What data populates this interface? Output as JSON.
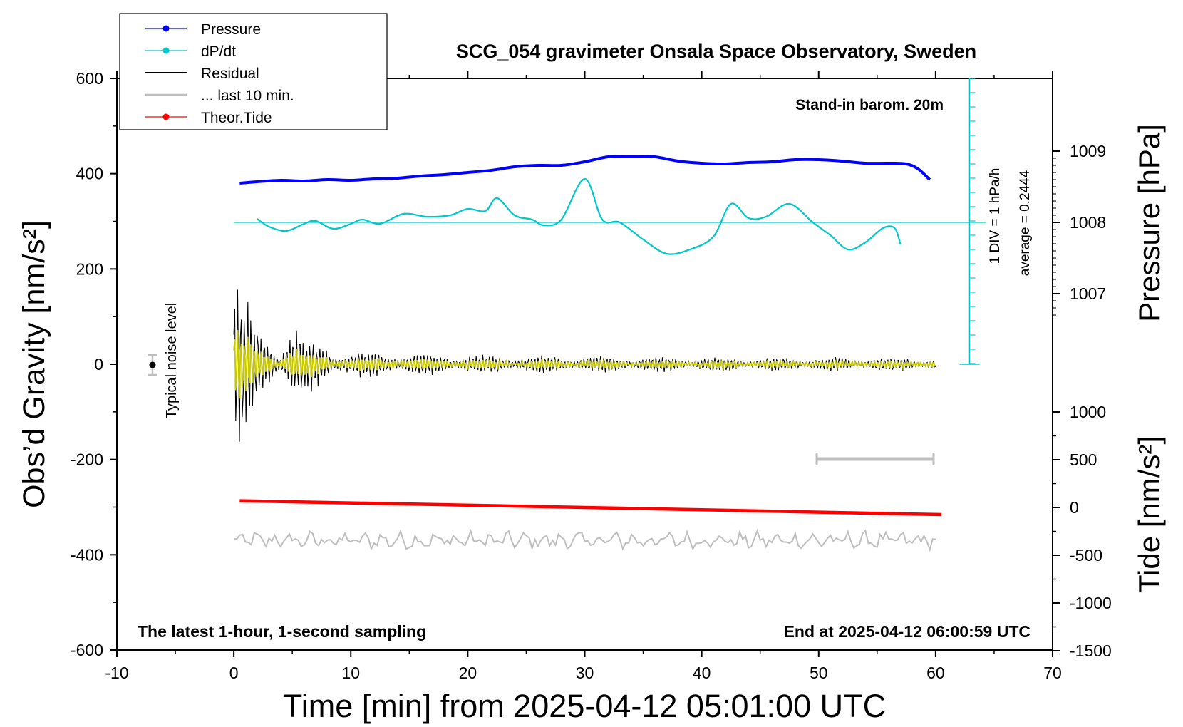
{
  "chart_data": {
    "type": "line",
    "title": "SCG_054 gravimeter Onsala Space Observatory, Sweden",
    "subtitle": "Stand-in barom. 20m",
    "xlabel": "Time [min] from 2025-04-12 05:01:00 UTC",
    "ylabel_left": "Obs’d Gravity [nm/s²]",
    "ylabel_right_top": "Pressure [hPa]",
    "ylabel_right_bottom": "Tide [nm/s²]",
    "xlim": [
      -10,
      70
    ],
    "ylim": [
      -600,
      600
    ],
    "x_ticks": [
      "-10",
      "0",
      "10",
      "20",
      "30",
      "40",
      "50",
      "60",
      "70"
    ],
    "y_ticks": [
      "600",
      "400",
      "200",
      "0",
      "-200",
      "-400",
      "-600"
    ],
    "pressure_ticks": [
      "1009",
      "1008",
      "1007"
    ],
    "tide_ticks": [
      "1000",
      "500",
      "0",
      "-500",
      "-1000",
      "-1500"
    ],
    "footer_left": "The latest 1-hour, 1-second sampling",
    "footer_right": "End at 2025-04-12 06:00:59 UTC",
    "noise_label": "Typical noise level",
    "dpdt_scale_label": "1 DIV = 1 hPa/h",
    "dpdt_average_label": "average = 0.2444",
    "legend": [
      {
        "label": "Pressure",
        "color": "#0000ff",
        "marker": true
      },
      {
        "label": "dP/dt",
        "color": "#00c8c8",
        "marker": true
      },
      {
        "label": "Residual",
        "color": "#000000",
        "marker": false
      },
      {
        "label": "... last 10 min.",
        "color": "#bebebe",
        "marker": false
      },
      {
        "label": "Theor.Tide",
        "color": "#ff0000",
        "marker": true
      }
    ],
    "colors": {
      "pressure": "#0000ff",
      "dpdt": "#00c8c8",
      "residual": "#000000",
      "filtered": "#c8c800",
      "last10": "#bebebe",
      "tide": "#ff0000"
    },
    "series": [
      {
        "name": "Pressure [hPa]",
        "x": [
          0.5,
          2,
          4,
          6,
          8,
          10,
          12,
          14,
          16,
          18,
          20,
          22,
          24,
          26,
          28,
          30,
          32,
          34,
          36,
          38,
          40,
          42,
          44,
          46,
          48,
          50,
          52,
          54,
          56,
          57.5,
          58.5,
          59.5
        ],
        "values": [
          1008.55,
          1008.57,
          1008.59,
          1008.58,
          1008.6,
          1008.59,
          1008.61,
          1008.62,
          1008.65,
          1008.67,
          1008.7,
          1008.73,
          1008.78,
          1008.8,
          1008.8,
          1008.85,
          1008.92,
          1008.93,
          1008.92,
          1008.86,
          1008.83,
          1008.82,
          1008.84,
          1008.85,
          1008.88,
          1008.88,
          1008.86,
          1008.83,
          1008.83,
          1008.82,
          1008.75,
          1008.6
        ]
      },
      {
        "name": "dP/dt [hPa/h]",
        "x": [
          2,
          3,
          4.5,
          6,
          7,
          8.5,
          10,
          11,
          12.5,
          14.5,
          16.5,
          18.5,
          20,
          21.5,
          22.5,
          24,
          25.5,
          26.5,
          28,
          30,
          31.5,
          33,
          35,
          37,
          39,
          41,
          42.5,
          44,
          45.5,
          47.5,
          49.5,
          51,
          52.5,
          54,
          55.5,
          56.5,
          57
        ],
        "values": [
          0.25,
          -0.3,
          -0.6,
          -0.1,
          0.1,
          -0.45,
          -0.1,
          0.2,
          -0.1,
          0.6,
          0.4,
          0.5,
          0.95,
          0.8,
          1.7,
          0.5,
          0.2,
          -0.2,
          0.2,
          3.05,
          0.2,
          0.0,
          -1.2,
          -2.2,
          -1.9,
          -1.0,
          1.3,
          0.3,
          0.4,
          1.3,
          0.0,
          -0.9,
          -1.9,
          -1.4,
          -0.4,
          -0.4,
          -1.55
        ]
      },
      {
        "name": "Theor.Tide [nm/s²]",
        "x": [
          0.5,
          30,
          60.5
        ],
        "values": [
          70,
          0,
          -75
        ]
      },
      {
        "name": "Residual envelope [nm/s²]",
        "x": [
          0,
          0.5,
          1,
          2,
          3,
          4,
          5,
          6,
          8,
          10,
          15,
          20,
          30,
          40,
          50,
          60
        ],
        "values": [
          200,
          190,
          150,
          80,
          60,
          45,
          110,
          60,
          40,
          30,
          25,
          20,
          18,
          16,
          15,
          15
        ]
      }
    ]
  }
}
